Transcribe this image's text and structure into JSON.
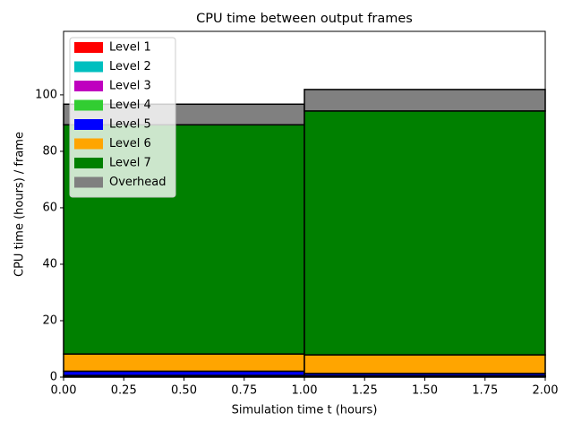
{
  "chart_data": {
    "type": "stacked_histogram",
    "title": "CPU time between output frames",
    "xlabel": "Simulation time t (hours)",
    "ylabel": "CPU time (hours) / frame",
    "bins": [
      0,
      1,
      2
    ],
    "series": [
      {
        "name": "Level 1",
        "color": "#ff0000",
        "values": [
          0.1,
          0.1
        ]
      },
      {
        "name": "Level 2",
        "color": "#00bfbf",
        "values": [
          0.1,
          0.1
        ]
      },
      {
        "name": "Level 3",
        "color": "#bf00bf",
        "values": [
          0.1,
          0.1
        ]
      },
      {
        "name": "Level 4",
        "color": "#32cd32",
        "values": [
          0.3,
          0.2
        ]
      },
      {
        "name": "Level 5",
        "color": "#0000ff",
        "values": [
          1.5,
          0.8
        ]
      },
      {
        "name": "Level 6",
        "color": "#ffa500",
        "values": [
          6.1,
          6.6
        ]
      },
      {
        "name": "Level 7",
        "color": "#008000",
        "values": [
          81.2,
          86.4
        ]
      },
      {
        "name": "Overhead",
        "color": "#808080",
        "values": [
          7.3,
          7.6
        ]
      }
    ],
    "xlim": [
      0,
      2
    ],
    "ylim": [
      0,
      122.5
    ],
    "xticks": [
      {
        "value": 0,
        "label": "0.00"
      },
      {
        "value": 0.25,
        "label": "0.25"
      },
      {
        "value": 0.5,
        "label": "0.50"
      },
      {
        "value": 0.75,
        "label": "0.75"
      },
      {
        "value": 1,
        "label": "1.00"
      },
      {
        "value": 1.25,
        "label": "1.25"
      },
      {
        "value": 1.5,
        "label": "1.50"
      },
      {
        "value": 1.75,
        "label": "1.75"
      },
      {
        "value": 2,
        "label": "2.00"
      }
    ],
    "yticks": [
      0,
      20,
      40,
      60,
      80,
      100
    ],
    "legend": "upper left"
  }
}
